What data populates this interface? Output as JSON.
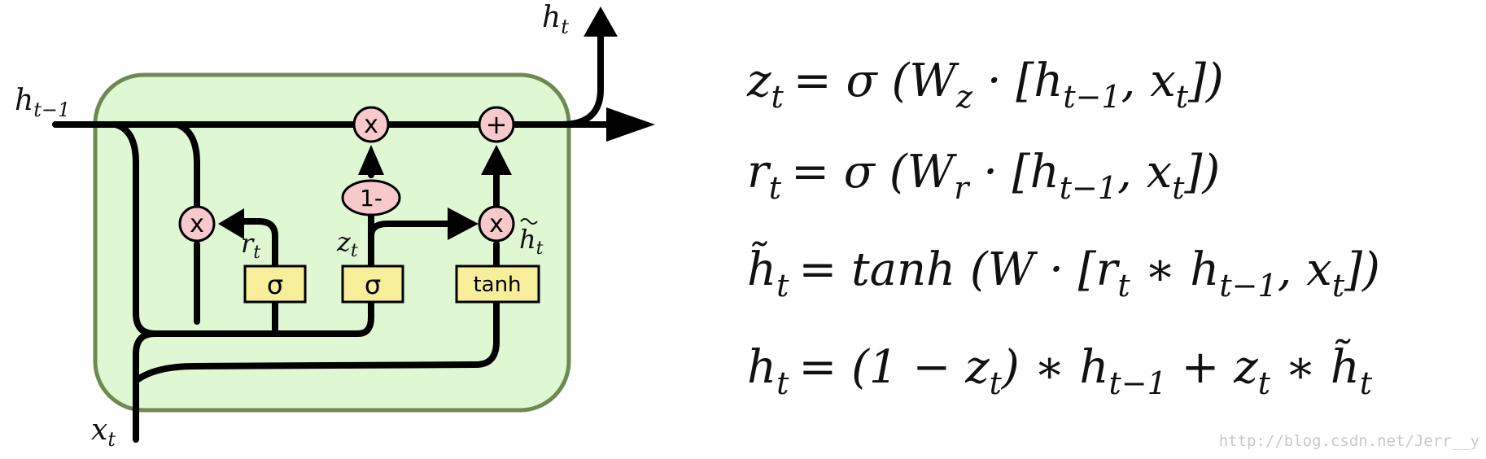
{
  "diagram": {
    "labels": {
      "h_out": "h",
      "h_out_sub": "t",
      "h_prev": "h",
      "h_prev_sub": "t−1",
      "x_in": "x",
      "x_in_sub": "t",
      "r_t": "r",
      "r_t_sub": "t",
      "z_t": "z",
      "z_t_sub": "t",
      "h_tilde": "h",
      "h_tilde_sub": "t"
    },
    "gates": {
      "reset_sigma": "σ",
      "update_sigma": "σ",
      "tanh": "tanh"
    },
    "ops": {
      "mul_top": "x",
      "add_top": "+",
      "one_minus": "1-",
      "mul_reset": "x",
      "mul_tilde": "x"
    },
    "colors": {
      "cell_fill": "#dff7d2",
      "cell_stroke": "#6e8a52",
      "gate_fill": "#f7ee9a",
      "op_fill": "#f7c9cd"
    }
  },
  "equations": {
    "eq1": {
      "lhs": "z",
      "lhs_sub": "t",
      "rhs": "= σ (W",
      "w_sub": "z",
      "rest": " · [h",
      "h_sub": "t−1",
      "rest2": ", x",
      "x_sub": "t",
      "end": "])"
    },
    "eq2": {
      "lhs": "r",
      "lhs_sub": "t",
      "rhs": "= σ (W",
      "w_sub": "r",
      "rest": " · [h",
      "h_sub": "t−1",
      "rest2": ", x",
      "x_sub": "t",
      "end": "])"
    },
    "eq3": {
      "lhs": "h̃",
      "lhs_sub": "t",
      "rhs": "= tanh (W · [r",
      "r_sub": "t",
      "rest": " ∗ h",
      "h_sub": "t−1",
      "rest2": ", x",
      "x_sub": "t",
      "end": "])"
    },
    "eq4": {
      "lhs": "h",
      "lhs_sub": "t",
      "rhs": "= (1 − z",
      "z_sub": "t",
      "rest": ") ∗ h",
      "h_sub": "t−1",
      "rest2": " + z",
      "z2_sub": "t",
      "rest3": " ∗ h̃",
      "ht_sub": "t"
    }
  },
  "watermark": "http://blog.csdn.net/Jerr__y"
}
